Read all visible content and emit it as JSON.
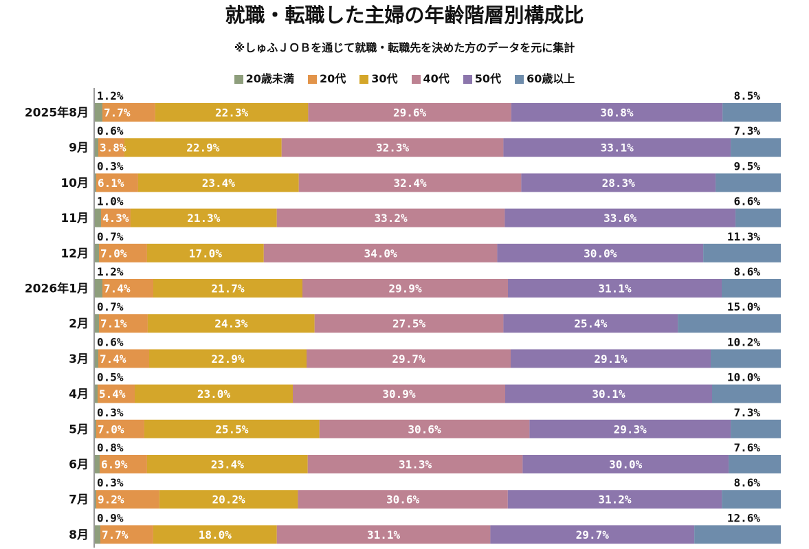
{
  "title": "就職・転職した主婦の年齢階層別構成比",
  "subtitle": "※しゅふＪＯＢを通じて就職・転職先を決めた方のデータを元に集計",
  "chart_data": {
    "type": "bar",
    "orientation": "horizontal",
    "stacked": "percent",
    "title": "就職・転職した主婦の年齢階層別構成比",
    "subtitle": "※しゅふＪＯＢを通じて就職・転職先を決めた方のデータを元に集計",
    "xlim": [
      0,
      100
    ],
    "legend_position": "top",
    "grid": false,
    "categories": [
      "2025年8月",
      "9月",
      "10月",
      "11月",
      "12月",
      "2026年1月",
      "2月",
      "3月",
      "4月",
      "5月",
      "6月",
      "7月",
      "8月"
    ],
    "series": [
      {
        "name": "20歳未満",
        "color": "#8e9e7c",
        "values": [
          1.2,
          0.6,
          0.3,
          1.0,
          0.7,
          1.2,
          0.7,
          0.6,
          0.5,
          0.3,
          0.8,
          0.3,
          0.9
        ],
        "labels": [
          "1.2%",
          "0.6%",
          "0.3%",
          "1.0%",
          "0.7%",
          "1.2%",
          "0.7%",
          "0.6%",
          "0.5%",
          "0.3%",
          "0.8%",
          "0.3%",
          "0.9%"
        ]
      },
      {
        "name": "20代",
        "color": "#e2944a",
        "values": [
          7.7,
          3.8,
          6.1,
          4.3,
          7.0,
          7.4,
          7.1,
          7.4,
          5.4,
          7.0,
          6.9,
          9.2,
          7.7
        ],
        "labels": [
          "7.7%",
          "3.8%",
          "6.1%",
          "4.3%",
          "7.0%",
          "7.4%",
          "7.1%",
          "7.4%",
          "5.4%",
          "7.0%",
          "6.9%",
          "9.2%",
          "7.7%"
        ]
      },
      {
        "name": "30代",
        "color": "#d4a62a",
        "values": [
          22.3,
          22.9,
          23.4,
          21.3,
          17.0,
          21.7,
          24.3,
          22.9,
          23.0,
          25.5,
          23.4,
          20.2,
          18.0
        ],
        "labels": [
          "22.3%",
          "22.9%",
          "23.4%",
          "21.3%",
          "17.0%",
          "21.7%",
          "24.3%",
          "22.9%",
          "23.0%",
          "25.5%",
          "23.4%",
          "20.2%",
          "18.0%"
        ]
      },
      {
        "name": "40代",
        "color": "#bd8292",
        "values": [
          29.6,
          32.3,
          32.4,
          33.2,
          34.0,
          29.9,
          27.5,
          29.7,
          30.9,
          30.6,
          31.3,
          30.6,
          31.1
        ],
        "labels": [
          "29.6%",
          "32.3%",
          "32.4%",
          "33.2%",
          "34.0%",
          "29.9%",
          "27.5%",
          "29.7%",
          "30.9%",
          "30.6%",
          "31.3%",
          "30.6%",
          "31.1%"
        ]
      },
      {
        "name": "50代",
        "color": "#8c76ac",
        "values": [
          30.8,
          33.1,
          28.3,
          33.6,
          30.0,
          31.1,
          25.4,
          29.1,
          30.1,
          29.3,
          30.0,
          31.2,
          29.7
        ],
        "labels": [
          "30.8%",
          "33.1%",
          "28.3%",
          "33.6%",
          "30.0%",
          "31.1%",
          "25.4%",
          "29.1%",
          "30.1%",
          "29.3%",
          "30.0%",
          "31.2%",
          "29.7%"
        ]
      },
      {
        "name": "60歳以上",
        "color": "#6e8cab",
        "values": [
          8.5,
          7.3,
          9.5,
          6.6,
          11.3,
          8.6,
          15.0,
          10.2,
          10.0,
          7.3,
          7.6,
          8.6,
          12.6
        ],
        "labels": [
          "8.5%",
          "7.3%",
          "9.5%",
          "6.6%",
          "11.3%",
          "8.6%",
          "15.0%",
          "10.2%",
          "10.0%",
          "7.3%",
          "7.6%",
          "8.6%",
          "12.6%"
        ]
      }
    ]
  }
}
